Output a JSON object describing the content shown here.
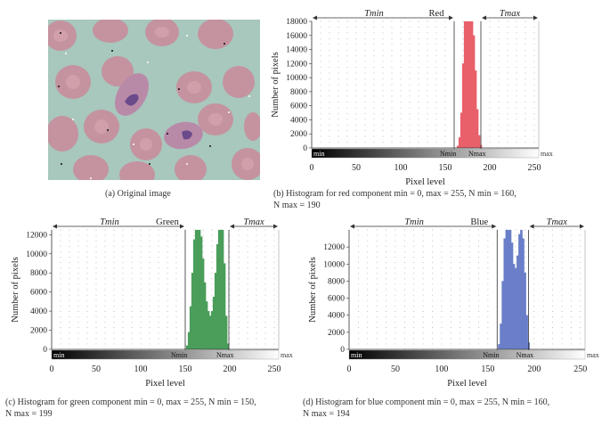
{
  "captions": {
    "a": "(a)  Original image",
    "b_line1": "(b)  Histogram for red component min = 0, max = 255, N min = 160,",
    "b_line2": "N max = 190",
    "c_line1": "(c)  Histogram for green component min = 0, max = 255, N min = 150,",
    "c_line2": "N max = 199",
    "d_line1": "(d)  Histogram for blue component min = 0, max = 255, N min = 160,",
    "d_line2": "N max = 194"
  },
  "chart_data": [
    {
      "type": "bar",
      "id": "red",
      "title": "Red",
      "xlabel": "Pixel level",
      "ylabel": "Number of pixels",
      "xlim": [
        0,
        255
      ],
      "ylim": [
        0,
        18000
      ],
      "yticks": [
        0,
        2000,
        4000,
        6000,
        8000,
        10000,
        12000,
        14000,
        16000,
        18000
      ],
      "xticks": [
        0,
        50,
        100,
        150,
        200,
        250
      ],
      "nmin": 160,
      "nmax": 190,
      "annotations": {
        "tmin": "Tmin",
        "tmax": "Tmax",
        "nmin": "Nmin",
        "nmax": "Nmax",
        "min": "min",
        "max": "max"
      },
      "color": "#e8606a",
      "x": [
        164,
        166,
        168,
        170,
        172,
        174,
        176,
        178,
        180,
        182,
        184,
        186,
        188,
        190
      ],
      "values": [
        300,
        1500,
        5000,
        12000,
        18000,
        18000,
        18000,
        18000,
        18000,
        16000,
        11000,
        5500,
        1800,
        400
      ]
    },
    {
      "type": "bar",
      "id": "green",
      "title": "Green",
      "xlabel": "Pixel level",
      "ylabel": "Number of pixels",
      "xlim": [
        0,
        255
      ],
      "ylim": [
        0,
        12500
      ],
      "yticks": [
        0,
        2000,
        4000,
        6000,
        8000,
        10000,
        12000
      ],
      "xticks": [
        0,
        50,
        100,
        150,
        200,
        250
      ],
      "nmin": 150,
      "nmax": 199,
      "annotations": {
        "tmin": "Tmin",
        "tmax": "Tmax",
        "nmin": "Nmin",
        "nmax": "Nmax",
        "min": "min",
        "max": "max"
      },
      "color": "#4a9e5a",
      "x": [
        152,
        154,
        156,
        158,
        160,
        162,
        164,
        166,
        168,
        170,
        172,
        174,
        176,
        178,
        180,
        182,
        184,
        186,
        188,
        190,
        192,
        194,
        196,
        198
      ],
      "values": [
        400,
        1800,
        4500,
        8000,
        11500,
        12500,
        12500,
        12500,
        11800,
        9500,
        7000,
        5000,
        4000,
        3500,
        4000,
        5500,
        8000,
        11000,
        12500,
        12500,
        12500,
        9000,
        3500,
        600
      ]
    },
    {
      "type": "bar",
      "id": "blue",
      "title": "Blue",
      "xlabel": "Pixel level",
      "ylabel": "Number of pixels",
      "xlim": [
        0,
        255
      ],
      "ylim": [
        0,
        14000
      ],
      "yticks": [
        0,
        2000,
        4000,
        6000,
        8000,
        10000,
        12000
      ],
      "xticks": [
        0,
        50,
        100,
        150,
        200,
        250
      ],
      "nmin": 160,
      "nmax": 194,
      "annotations": {
        "tmin": "Tmin",
        "tmax": "Tmax",
        "nmin": "Nmin",
        "nmax": "Nmax",
        "min": "min",
        "max": "max"
      },
      "color": "#6a7fc8",
      "x": [
        162,
        164,
        166,
        168,
        170,
        172,
        174,
        176,
        178,
        180,
        182,
        184,
        186,
        188,
        190,
        192,
        194
      ],
      "values": [
        600,
        3000,
        8000,
        13000,
        14000,
        14000,
        14000,
        12500,
        10000,
        9500,
        11000,
        13500,
        14000,
        13000,
        9000,
        4000,
        800
      ]
    }
  ]
}
